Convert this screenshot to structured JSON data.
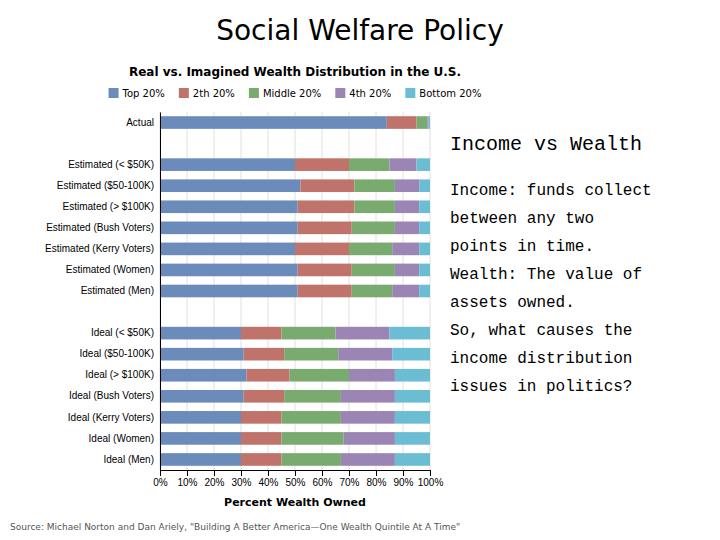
{
  "title": "Social Welfare Policy",
  "chart_data": {
    "type": "bar",
    "orientation": "horizontal",
    "stacked": true,
    "title": "Real vs. Imagined Wealth Distribution in the U.S.",
    "xlabel": "Percent Wealth Owned",
    "source": "Source: Michael Norton and Dan Ariely, \"Building A Better America—One Wealth Quintile At A Time\"",
    "categories": [
      "Actual",
      null,
      "Estimated (< $50K)",
      "Estimated ($50-100K)",
      "Estimated (> $100K)",
      "Estimated (Bush Voters)",
      "Estimated (Kerry Voters)",
      "Estimated (Women)",
      "Estimated (Men)",
      null,
      "Ideal (< $50K)",
      "Ideal ($50-100K)",
      "Ideal (> $100K)",
      "Ideal (Bush Voters)",
      "Ideal (Kerry Voters)",
      "Ideal (Women)",
      "Ideal (Men)"
    ],
    "series": [
      {
        "name": "Top 20%",
        "color": "#6b8cba",
        "values": [
          84,
          0,
          50,
          52,
          51,
          51,
          50,
          51,
          51,
          0,
          30,
          31,
          32,
          31,
          30,
          30,
          30
        ]
      },
      {
        "name": "2th 20%",
        "color": "#c0736a",
        "values": [
          11,
          0,
          20,
          20,
          21,
          20,
          20,
          20,
          20,
          0,
          15,
          15,
          16,
          15,
          15,
          15,
          15
        ]
      },
      {
        "name": "Middle 20%",
        "color": "#7aab6e",
        "values": [
          4,
          0,
          15,
          15,
          15,
          16,
          16,
          16,
          15,
          0,
          20,
          20,
          22,
          21,
          22,
          23,
          22
        ]
      },
      {
        "name": "4th 20%",
        "color": "#9b85b5",
        "values": [
          0.5,
          0,
          10,
          9,
          9,
          9,
          10,
          9,
          10,
          0,
          20,
          20,
          17,
          20,
          20,
          19,
          20
        ]
      },
      {
        "name": "Bottom 20%",
        "color": "#6bbdd4",
        "values": [
          0.5,
          0,
          5,
          4,
          4,
          4,
          4,
          4,
          4,
          0,
          15,
          14,
          13,
          13,
          13,
          13,
          13
        ]
      }
    ],
    "xlim": [
      0,
      100
    ],
    "xticks": [
      {
        "value": 0,
        "label": "0%"
      },
      {
        "value": 10,
        "label": "10%"
      },
      {
        "value": 20,
        "label": "20%"
      },
      {
        "value": 30,
        "label": "30%"
      },
      {
        "value": 40,
        "label": "40%"
      },
      {
        "value": 50,
        "label": "50%"
      },
      {
        "value": 60,
        "label": "60%"
      },
      {
        "value": 70,
        "label": "70%"
      },
      {
        "value": 80,
        "label": "80%"
      },
      {
        "value": 90,
        "label": "90%"
      },
      {
        "value": 100,
        "label": "100%"
      }
    ],
    "grid": true,
    "legend": "top"
  },
  "sidebar": {
    "title": "Income vs Wealth",
    "lines": [
      "Income: funds collect",
      "between any two",
      "points in time.",
      "Wealth: The value of",
      "assets owned.",
      "So, what causes the",
      "income distribution",
      "issues in politics?"
    ]
  }
}
